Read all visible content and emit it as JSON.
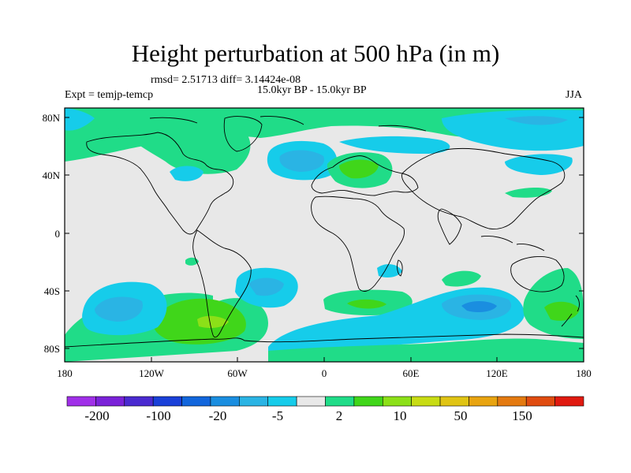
{
  "title": "Height perturbation at 500 hPa (in m)",
  "stats": "rmsd= 2.51713 diff= 3.14424e-08",
  "period": "15.0kyr BP - 15.0kyr BP",
  "experiment": "Expt = temjp-temcp",
  "season": "JJA",
  "lat_ticks": [
    "80N",
    "40N",
    "0",
    "40S",
    "80S"
  ],
  "lon_ticks": [
    "180",
    "120W",
    "60W",
    "0",
    "60E",
    "120E",
    "180"
  ],
  "colorbar": {
    "colors": [
      "#a030e8",
      "#7a22d8",
      "#4a2ad0",
      "#1a40d8",
      "#1266dc",
      "#1a8ee0",
      "#2ab4e4",
      "#16ccea",
      "#e8e8e8",
      "#20dc88",
      "#40d61a",
      "#8ce018",
      "#c8dc14",
      "#e0c414",
      "#e8a410",
      "#e47a10",
      "#e04c10",
      "#e01a10"
    ],
    "labels": [
      "-200",
      "-100",
      "-20",
      "-5",
      "2",
      "10",
      "50",
      "150"
    ]
  }
}
